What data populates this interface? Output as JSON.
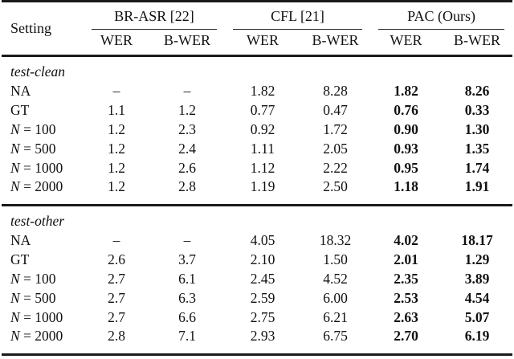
{
  "colors": {
    "text": "#111111",
    "background": "#ffffff",
    "rule": "#1a1a1a"
  },
  "table": {
    "setting_header": "Setting",
    "groups": [
      {
        "label": "BR-ASR [22]",
        "cols": [
          "WER",
          "B-WER"
        ]
      },
      {
        "label": "CFL [21]",
        "cols": [
          "WER",
          "B-WER"
        ]
      },
      {
        "label": "PAC (Ours)",
        "cols": [
          "WER",
          "B-WER"
        ]
      }
    ],
    "bold_value_columns": [
      4,
      5
    ],
    "sections": [
      {
        "label": "test-clean",
        "rows": [
          {
            "setting": "NA",
            "values": [
              "–",
              "–",
              "1.82",
              "8.28",
              "1.82",
              "8.26"
            ]
          },
          {
            "setting": "GT",
            "values": [
              "1.1",
              "1.2",
              "0.77",
              "0.47",
              "0.76",
              "0.33"
            ]
          },
          {
            "setting": "N = 100",
            "values": [
              "1.2",
              "2.3",
              "0.92",
              "1.72",
              "0.90",
              "1.30"
            ]
          },
          {
            "setting": "N = 500",
            "values": [
              "1.2",
              "2.4",
              "1.11",
              "2.05",
              "0.93",
              "1.35"
            ]
          },
          {
            "setting": "N = 1000",
            "values": [
              "1.2",
              "2.6",
              "1.12",
              "2.22",
              "0.95",
              "1.74"
            ]
          },
          {
            "setting": "N = 2000",
            "values": [
              "1.2",
              "2.8",
              "1.19",
              "2.50",
              "1.18",
              "1.91"
            ]
          }
        ]
      },
      {
        "label": "test-other",
        "rows": [
          {
            "setting": "NA",
            "values": [
              "–",
              "–",
              "4.05",
              "18.32",
              "4.02",
              "18.17"
            ]
          },
          {
            "setting": "GT",
            "values": [
              "2.6",
              "3.7",
              "2.10",
              "1.50",
              "2.01",
              "1.29"
            ]
          },
          {
            "setting": "N = 100",
            "values": [
              "2.7",
              "6.1",
              "2.45",
              "4.52",
              "2.35",
              "3.89"
            ]
          },
          {
            "setting": "N = 500",
            "values": [
              "2.7",
              "6.3",
              "2.59",
              "6.00",
              "2.53",
              "4.54"
            ]
          },
          {
            "setting": "N = 1000",
            "values": [
              "2.7",
              "6.6",
              "2.75",
              "6.21",
              "2.63",
              "5.07"
            ]
          },
          {
            "setting": "N = 2000",
            "values": [
              "2.8",
              "7.1",
              "2.93",
              "6.75",
              "2.70",
              "6.19"
            ]
          }
        ]
      }
    ]
  }
}
